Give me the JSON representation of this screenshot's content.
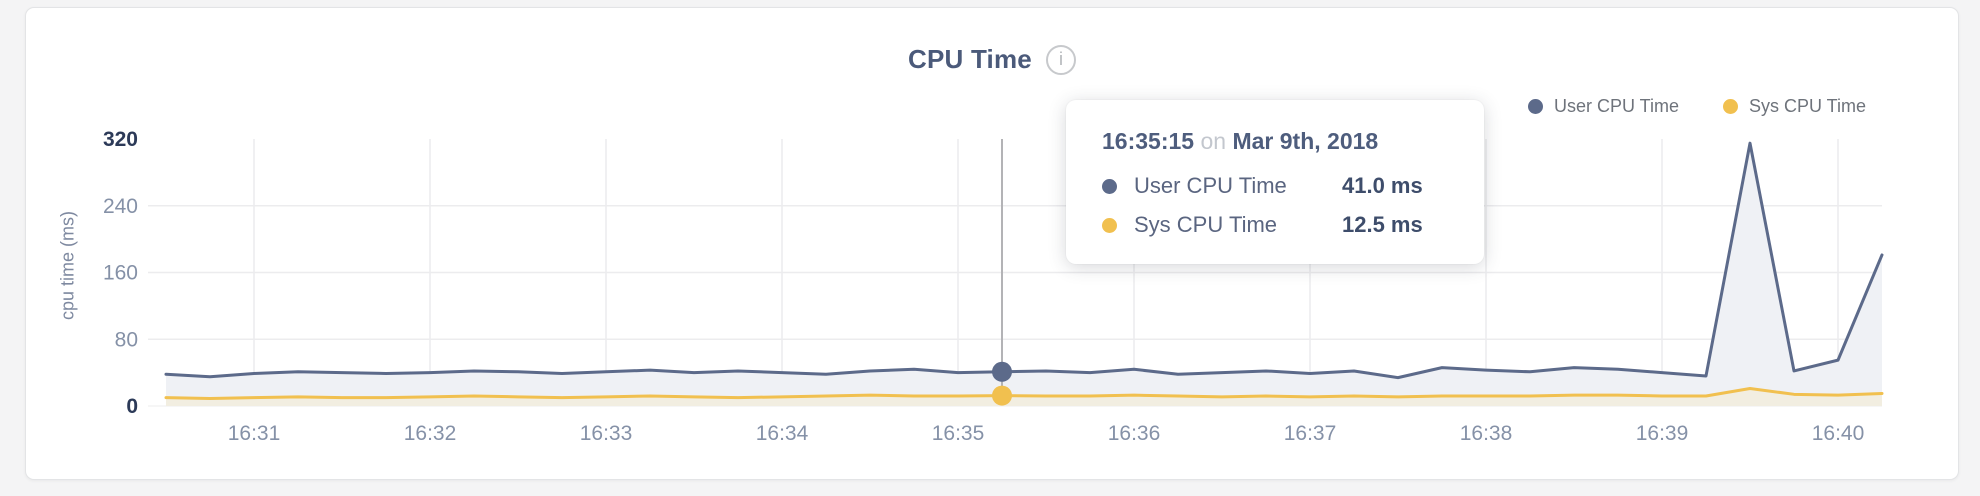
{
  "header": {
    "title": "CPU Time",
    "info_icon_glyph": "i"
  },
  "legend": [
    {
      "label": "User CPU Time",
      "color": "#5c6a8a"
    },
    {
      "label": "Sys CPU Time",
      "color": "#f1c04f"
    }
  ],
  "tooltip": {
    "time": "16:35:15",
    "connector": "on",
    "date": "Mar 9th, 2018",
    "rows": [
      {
        "label": "User CPU Time",
        "value": "41.0 ms",
        "color": "#5c6a8a"
      },
      {
        "label": "Sys CPU Time",
        "value": "12.5 ms",
        "color": "#f1c04f"
      }
    ]
  },
  "chart_data": {
    "type": "line",
    "title": "CPU Time",
    "xlabel": "",
    "ylabel": "cpu time (ms)",
    "ylim": [
      0,
      320
    ],
    "y_ticks": [
      0,
      80,
      160,
      240,
      320
    ],
    "x_ticks": [
      "16:31",
      "16:32",
      "16:33",
      "16:34",
      "16:35",
      "16:36",
      "16:37",
      "16:38",
      "16:39",
      "16:40"
    ],
    "grid": true,
    "legend_position": "top-right",
    "x": [
      "16:30:30",
      "16:30:45",
      "16:31:00",
      "16:31:15",
      "16:31:30",
      "16:31:45",
      "16:32:00",
      "16:32:15",
      "16:32:30",
      "16:32:45",
      "16:33:00",
      "16:33:15",
      "16:33:30",
      "16:33:45",
      "16:34:00",
      "16:34:15",
      "16:34:30",
      "16:34:45",
      "16:35:00",
      "16:35:15",
      "16:35:30",
      "16:35:45",
      "16:36:00",
      "16:36:15",
      "16:36:30",
      "16:36:45",
      "16:37:00",
      "16:37:15",
      "16:37:30",
      "16:37:45",
      "16:38:00",
      "16:38:15",
      "16:38:30",
      "16:38:45",
      "16:39:00",
      "16:39:15",
      "16:39:30",
      "16:39:45",
      "16:40:00",
      "16:40:15"
    ],
    "series": [
      {
        "name": "User CPU Time",
        "color": "#5c6a8a",
        "fill": "#eff1f5",
        "values": [
          38,
          35,
          39,
          41,
          40,
          39,
          40,
          42,
          41,
          39,
          41,
          43,
          40,
          42,
          40,
          38,
          42,
          44,
          40,
          41,
          42,
          40,
          44,
          38,
          40,
          42,
          39,
          42,
          34,
          46,
          43,
          41,
          46,
          44,
          40,
          36,
          315,
          42,
          55,
          181
        ]
      },
      {
        "name": "Sys CPU Time",
        "color": "#f1c04f",
        "fill": "#f2eee1",
        "values": [
          10,
          9,
          10,
          11,
          10,
          10,
          11,
          12,
          11,
          10,
          11,
          12,
          11,
          10,
          11,
          12,
          13,
          12,
          12,
          12.5,
          12,
          12,
          13,
          12,
          11,
          12,
          11,
          12,
          11,
          12,
          12,
          12,
          13,
          13,
          12,
          12,
          21,
          14,
          13,
          15
        ]
      }
    ],
    "hover": {
      "index": 19,
      "time": "16:35:15",
      "date": "Mar 9th, 2018",
      "values_ms": [
        41.0,
        12.5
      ]
    }
  },
  "colors": {
    "grid": "#ececee",
    "crosshair": "#b3b3b6",
    "tick_label": "#8591a7",
    "tick_label_extreme": "#2c3a58",
    "axis_title": "#7e89a0",
    "card_background": "#ffffff",
    "page_background": "#f4f4f5"
  }
}
